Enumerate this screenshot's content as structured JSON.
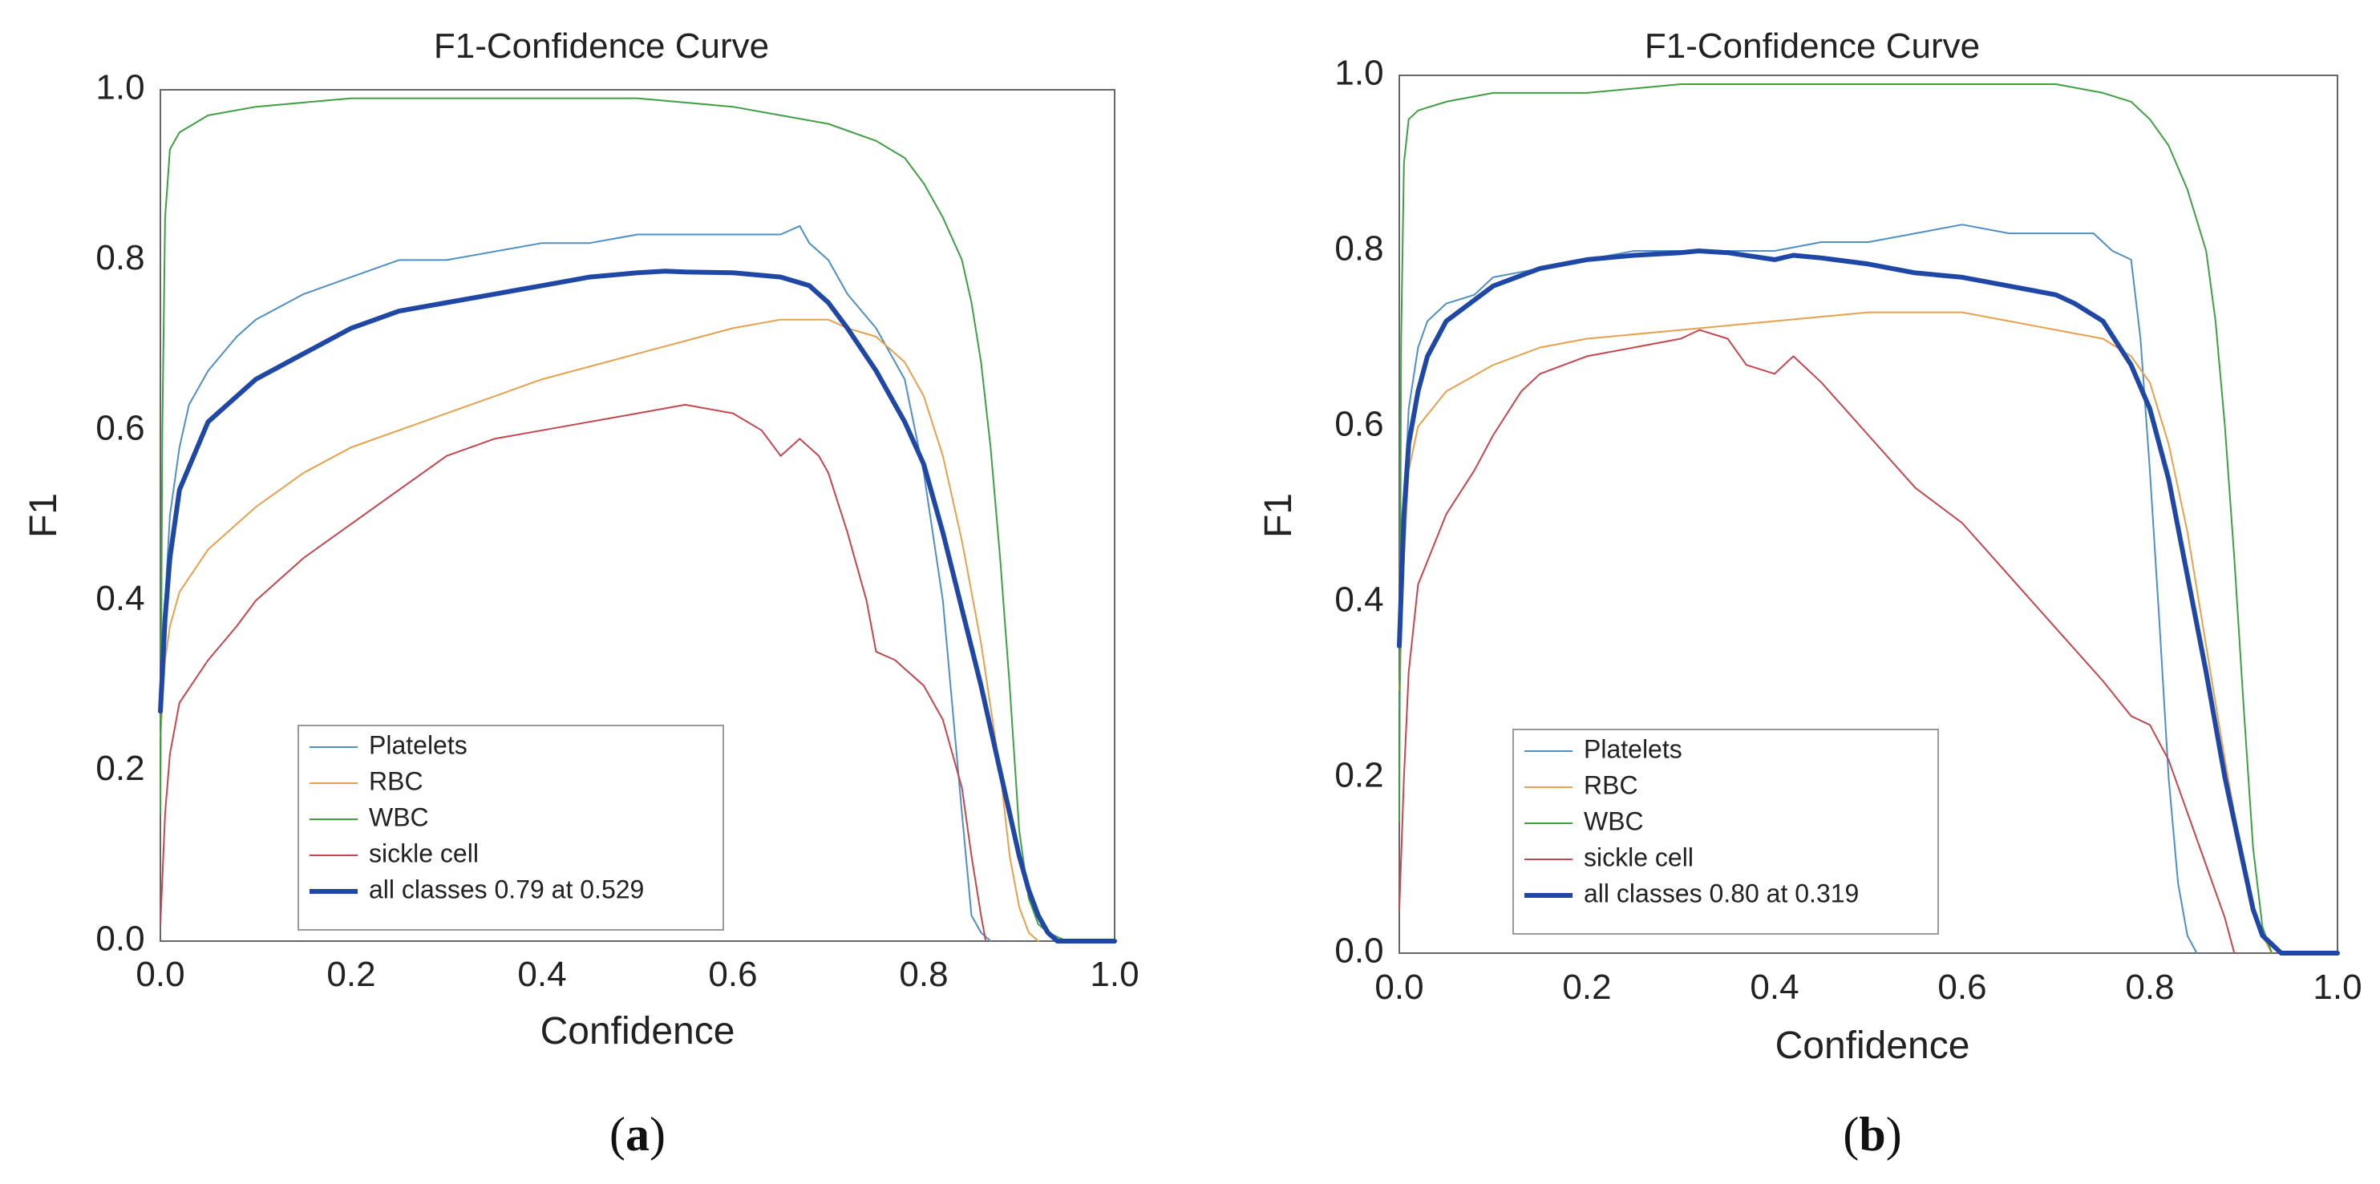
{
  "chart_data": [
    {
      "type": "line",
      "panel_label": "a",
      "title": "F1-Confidence Curve",
      "xlabel": "Confidence",
      "ylabel": "F1",
      "xlim": [
        0.0,
        1.0
      ],
      "ylim": [
        0.0,
        1.0
      ],
      "xticks": [
        "0.0",
        "0.2",
        "0.4",
        "0.6",
        "0.8",
        "1.0"
      ],
      "yticks": [
        "0.0",
        "0.2",
        "0.4",
        "0.6",
        "0.8",
        "1.0"
      ],
      "grid": false,
      "legend_position": "lower-center",
      "series": [
        {
          "name": "Platelets",
          "color": "#4e8fc4",
          "width": 2,
          "x": [
            0.0,
            0.005,
            0.01,
            0.02,
            0.03,
            0.05,
            0.08,
            0.1,
            0.15,
            0.2,
            0.25,
            0.3,
            0.35,
            0.4,
            0.45,
            0.5,
            0.55,
            0.6,
            0.65,
            0.67,
            0.68,
            0.7,
            0.72,
            0.75,
            0.78,
            0.8,
            0.82,
            0.84,
            0.85,
            0.86,
            0.87
          ],
          "y": [
            0.26,
            0.4,
            0.5,
            0.58,
            0.63,
            0.67,
            0.71,
            0.73,
            0.76,
            0.78,
            0.8,
            0.8,
            0.81,
            0.82,
            0.82,
            0.83,
            0.83,
            0.83,
            0.83,
            0.84,
            0.82,
            0.8,
            0.76,
            0.72,
            0.66,
            0.55,
            0.4,
            0.15,
            0.03,
            0.01,
            0.0
          ]
        },
        {
          "name": "RBC",
          "color": "#e8a04c",
          "width": 2,
          "x": [
            0.0,
            0.005,
            0.01,
            0.02,
            0.05,
            0.1,
            0.15,
            0.2,
            0.3,
            0.4,
            0.5,
            0.6,
            0.65,
            0.68,
            0.7,
            0.72,
            0.75,
            0.78,
            0.8,
            0.82,
            0.84,
            0.86,
            0.88,
            0.89,
            0.9,
            0.91,
            0.92
          ],
          "y": [
            0.24,
            0.33,
            0.37,
            0.41,
            0.46,
            0.51,
            0.55,
            0.58,
            0.62,
            0.66,
            0.69,
            0.72,
            0.73,
            0.73,
            0.73,
            0.72,
            0.71,
            0.68,
            0.64,
            0.57,
            0.47,
            0.35,
            0.2,
            0.1,
            0.04,
            0.01,
            0.0
          ]
        },
        {
          "name": "WBC",
          "color": "#3f9f43",
          "width": 2,
          "x": [
            0.0,
            0.002,
            0.005,
            0.01,
            0.02,
            0.05,
            0.1,
            0.2,
            0.3,
            0.4,
            0.5,
            0.6,
            0.65,
            0.7,
            0.75,
            0.78,
            0.8,
            0.82,
            0.84,
            0.85,
            0.86,
            0.87,
            0.88,
            0.89,
            0.9,
            0.91,
            0.92,
            0.93,
            0.95
          ],
          "y": [
            0.15,
            0.6,
            0.85,
            0.93,
            0.95,
            0.97,
            0.98,
            0.99,
            0.99,
            0.99,
            0.99,
            0.98,
            0.97,
            0.96,
            0.94,
            0.92,
            0.89,
            0.85,
            0.8,
            0.75,
            0.68,
            0.58,
            0.45,
            0.3,
            0.13,
            0.05,
            0.02,
            0.01,
            0.0
          ]
        },
        {
          "name": "sickle cell",
          "color": "#c4464e",
          "width": 2,
          "x": [
            0.0,
            0.005,
            0.01,
            0.02,
            0.05,
            0.08,
            0.1,
            0.12,
            0.15,
            0.2,
            0.25,
            0.3,
            0.35,
            0.4,
            0.45,
            0.5,
            0.55,
            0.6,
            0.63,
            0.65,
            0.67,
            0.69,
            0.7,
            0.72,
            0.74,
            0.75,
            0.77,
            0.78,
            0.8,
            0.82,
            0.84,
            0.85,
            0.86,
            0.865
          ],
          "y": [
            0.02,
            0.15,
            0.22,
            0.28,
            0.33,
            0.37,
            0.4,
            0.42,
            0.45,
            0.49,
            0.53,
            0.57,
            0.59,
            0.6,
            0.61,
            0.62,
            0.63,
            0.62,
            0.6,
            0.57,
            0.59,
            0.57,
            0.55,
            0.48,
            0.4,
            0.34,
            0.33,
            0.32,
            0.3,
            0.26,
            0.18,
            0.1,
            0.03,
            0.0
          ]
        },
        {
          "name": "all classes 0.79 at 0.529",
          "color": "#1f47a6",
          "width": 6,
          "x": [
            0.0,
            0.005,
            0.01,
            0.02,
            0.05,
            0.1,
            0.15,
            0.2,
            0.25,
            0.3,
            0.35,
            0.4,
            0.45,
            0.5,
            0.529,
            0.55,
            0.6,
            0.65,
            0.68,
            0.7,
            0.72,
            0.75,
            0.78,
            0.8,
            0.82,
            0.84,
            0.86,
            0.88,
            0.9,
            0.91,
            0.92,
            0.93,
            0.94,
            1.0
          ],
          "y": [
            0.27,
            0.38,
            0.45,
            0.53,
            0.61,
            0.66,
            0.69,
            0.72,
            0.74,
            0.75,
            0.76,
            0.77,
            0.78,
            0.785,
            0.787,
            0.786,
            0.785,
            0.78,
            0.77,
            0.75,
            0.72,
            0.67,
            0.61,
            0.56,
            0.48,
            0.39,
            0.3,
            0.2,
            0.1,
            0.06,
            0.03,
            0.01,
            0.0,
            0.0
          ]
        }
      ],
      "legend": [
        "Platelets",
        "RBC",
        "WBC",
        "sickle cell",
        "all classes 0.79 at 0.529"
      ]
    },
    {
      "type": "line",
      "panel_label": "b",
      "title": "F1-Confidence Curve",
      "xlabel": "Confidence",
      "ylabel": "F1",
      "xlim": [
        0.0,
        1.0
      ],
      "ylim": [
        0.0,
        1.0
      ],
      "xticks": [
        "0.0",
        "0.2",
        "0.4",
        "0.6",
        "0.8",
        "1.0"
      ],
      "yticks": [
        "0.0",
        "0.2",
        "0.4",
        "0.6",
        "0.8",
        "1.0"
      ],
      "grid": false,
      "legend_position": "lower-center",
      "series": [
        {
          "name": "Platelets",
          "color": "#4e8fc4",
          "width": 2,
          "x": [
            0.0,
            0.005,
            0.01,
            0.02,
            0.03,
            0.05,
            0.08,
            0.1,
            0.15,
            0.2,
            0.25,
            0.3,
            0.35,
            0.4,
            0.45,
            0.5,
            0.55,
            0.6,
            0.65,
            0.7,
            0.74,
            0.76,
            0.78,
            0.79,
            0.8,
            0.81,
            0.82,
            0.83,
            0.84,
            0.85
          ],
          "y": [
            0.28,
            0.5,
            0.62,
            0.69,
            0.72,
            0.74,
            0.75,
            0.77,
            0.78,
            0.79,
            0.8,
            0.8,
            0.8,
            0.8,
            0.81,
            0.81,
            0.82,
            0.83,
            0.82,
            0.82,
            0.82,
            0.8,
            0.79,
            0.7,
            0.55,
            0.38,
            0.2,
            0.08,
            0.02,
            0.0
          ]
        },
        {
          "name": "RBC",
          "color": "#e8a04c",
          "width": 2,
          "x": [
            0.0,
            0.005,
            0.01,
            0.02,
            0.05,
            0.1,
            0.15,
            0.2,
            0.3,
            0.4,
            0.5,
            0.6,
            0.65,
            0.7,
            0.75,
            0.78,
            0.8,
            0.82,
            0.84,
            0.86,
            0.88,
            0.9,
            0.91,
            0.92,
            0.93
          ],
          "y": [
            0.3,
            0.45,
            0.55,
            0.6,
            0.64,
            0.67,
            0.69,
            0.7,
            0.71,
            0.72,
            0.73,
            0.73,
            0.72,
            0.71,
            0.7,
            0.68,
            0.65,
            0.58,
            0.48,
            0.35,
            0.22,
            0.1,
            0.05,
            0.02,
            0.0
          ]
        },
        {
          "name": "WBC",
          "color": "#3f9f43",
          "width": 2,
          "x": [
            0.0,
            0.002,
            0.005,
            0.01,
            0.02,
            0.05,
            0.1,
            0.2,
            0.3,
            0.4,
            0.5,
            0.6,
            0.65,
            0.7,
            0.75,
            0.78,
            0.8,
            0.82,
            0.84,
            0.86,
            0.87,
            0.88,
            0.89,
            0.9,
            0.91,
            0.92,
            0.93
          ],
          "y": [
            0.15,
            0.7,
            0.9,
            0.95,
            0.96,
            0.97,
            0.98,
            0.98,
            0.99,
            0.99,
            0.99,
            0.99,
            0.99,
            0.99,
            0.98,
            0.97,
            0.95,
            0.92,
            0.87,
            0.8,
            0.72,
            0.6,
            0.45,
            0.28,
            0.12,
            0.03,
            0.0
          ]
        },
        {
          "name": "sickle cell",
          "color": "#c4464e",
          "width": 2,
          "x": [
            0.0,
            0.005,
            0.01,
            0.02,
            0.05,
            0.08,
            0.1,
            0.13,
            0.15,
            0.2,
            0.25,
            0.3,
            0.32,
            0.35,
            0.37,
            0.4,
            0.42,
            0.45,
            0.5,
            0.55,
            0.6,
            0.65,
            0.7,
            0.75,
            0.78,
            0.8,
            0.82,
            0.84,
            0.86,
            0.88,
            0.89
          ],
          "y": [
            0.05,
            0.2,
            0.32,
            0.42,
            0.5,
            0.55,
            0.59,
            0.64,
            0.66,
            0.68,
            0.69,
            0.7,
            0.71,
            0.7,
            0.67,
            0.66,
            0.68,
            0.65,
            0.59,
            0.53,
            0.49,
            0.43,
            0.37,
            0.31,
            0.27,
            0.26,
            0.22,
            0.16,
            0.1,
            0.04,
            0.0
          ]
        },
        {
          "name": "all classes 0.80 at 0.319",
          "color": "#1f47a6",
          "width": 6,
          "x": [
            0.0,
            0.005,
            0.01,
            0.02,
            0.03,
            0.05,
            0.1,
            0.15,
            0.2,
            0.25,
            0.3,
            0.319,
            0.35,
            0.4,
            0.42,
            0.45,
            0.5,
            0.55,
            0.6,
            0.65,
            0.7,
            0.72,
            0.75,
            0.78,
            0.8,
            0.82,
            0.84,
            0.86,
            0.88,
            0.9,
            0.91,
            0.92,
            0.93,
            0.94,
            1.0
          ],
          "y": [
            0.35,
            0.5,
            0.58,
            0.64,
            0.68,
            0.72,
            0.76,
            0.78,
            0.79,
            0.795,
            0.798,
            0.8,
            0.798,
            0.79,
            0.795,
            0.792,
            0.785,
            0.775,
            0.77,
            0.76,
            0.75,
            0.74,
            0.72,
            0.67,
            0.62,
            0.54,
            0.43,
            0.32,
            0.2,
            0.1,
            0.05,
            0.02,
            0.01,
            0.0,
            0.0
          ]
        }
      ],
      "legend": [
        "Platelets",
        "RBC",
        "WBC",
        "sickle cell",
        "all classes 0.80 at 0.319"
      ]
    }
  ],
  "captions": [
    {
      "open": "(",
      "letter": "a",
      "close": ")"
    },
    {
      "open": "(",
      "letter": "b",
      "close": ")"
    }
  ]
}
